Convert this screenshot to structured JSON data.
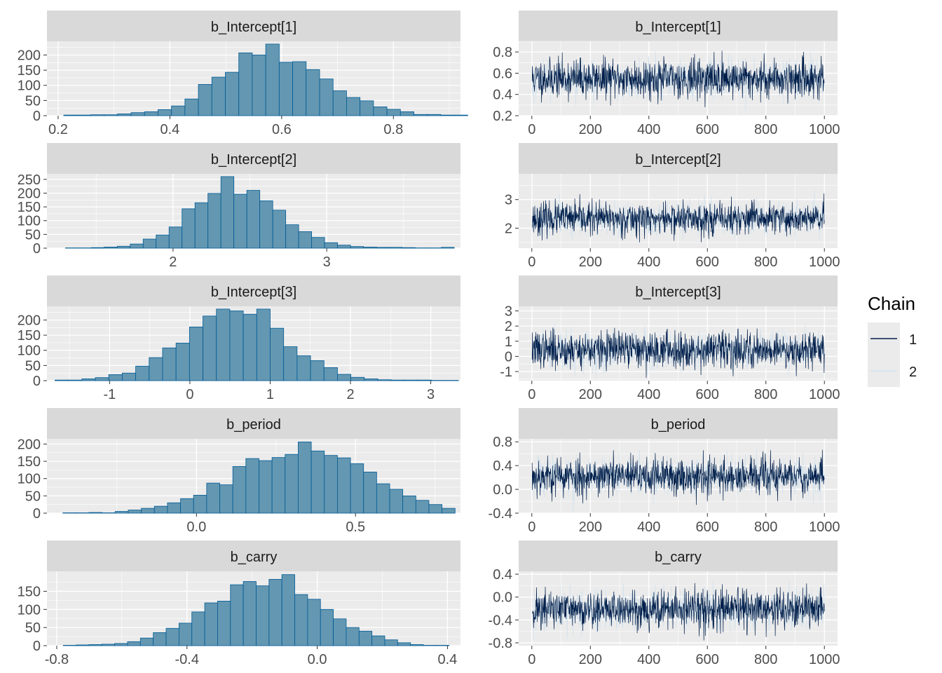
{
  "colors": {
    "panel_bg": "#ebebeb",
    "strip_bg": "#d9d9d9",
    "grid_major": "#ffffff",
    "hist_fill": "#6497b1",
    "hist_edge": "#005b96",
    "chain1": "#011f4b",
    "chain2": "#d1e1ec"
  },
  "legend": {
    "title": "Chain",
    "items": [
      {
        "label": "1",
        "color": "#011f4b"
      },
      {
        "label": "2",
        "color": "#d1e1ec"
      }
    ]
  },
  "chart_data": [
    {
      "type": "bar",
      "kind": "histogram",
      "title": "b_Intercept[1]",
      "bin_start": 0.21,
      "bin_width": 0.0241,
      "counts": [
        2,
        2,
        3,
        3,
        6,
        10,
        13,
        20,
        32,
        55,
        103,
        127,
        143,
        207,
        200,
        236,
        176,
        178,
        152,
        121,
        82,
        60,
        49,
        29,
        21,
        13,
        4,
        4,
        2,
        2
      ],
      "xlim": [
        0.18,
        0.92
      ],
      "ylim": [
        0,
        245
      ],
      "x_ticks": [
        {
          "v": 0.2,
          "label": "0.2"
        },
        {
          "v": 0.4,
          "label": "0.4"
        },
        {
          "v": 0.6,
          "label": "0.6"
        },
        {
          "v": 0.8,
          "label": "0.8"
        }
      ],
      "y_ticks": [
        {
          "v": 0,
          "label": "0"
        },
        {
          "v": 50,
          "label": "50"
        },
        {
          "v": 100,
          "label": "100"
        },
        {
          "v": 150,
          "label": "150"
        },
        {
          "v": 200,
          "label": "200"
        }
      ]
    },
    {
      "type": "line",
      "kind": "trace",
      "title": "b_Intercept[1]",
      "iterations": 1000,
      "center": 0.55,
      "spread": 0.09,
      "seed": 11,
      "xlim": [
        -45,
        1045
      ],
      "ylim": [
        0.2,
        0.9
      ],
      "x_ticks": [
        {
          "v": 0,
          "label": "0"
        },
        {
          "v": 200,
          "label": "200"
        },
        {
          "v": 400,
          "label": "400"
        },
        {
          "v": 600,
          "label": "600"
        },
        {
          "v": 800,
          "label": "800"
        },
        {
          "v": 1000,
          "label": "1000"
        }
      ],
      "y_ticks": [
        {
          "v": 0.2,
          "label": "0.2"
        },
        {
          "v": 0.4,
          "label": "0.4"
        },
        {
          "v": 0.6,
          "label": "0.6"
        },
        {
          "v": 0.8,
          "label": "0.8"
        }
      ],
      "series": [
        {
          "name": "1"
        },
        {
          "name": "2"
        }
      ]
    },
    {
      "type": "bar",
      "kind": "histogram",
      "title": "b_Intercept[2]",
      "bin_start": 1.3,
      "bin_width": 0.0843,
      "counts": [
        1,
        1,
        2,
        4,
        7,
        15,
        33,
        48,
        77,
        143,
        165,
        199,
        260,
        196,
        210,
        172,
        138,
        85,
        60,
        39,
        20,
        11,
        6,
        4,
        3,
        3,
        2,
        1,
        1,
        3
      ],
      "xlim": [
        1.18,
        3.87
      ],
      "ylim": [
        0,
        270
      ],
      "x_ticks": [
        {
          "v": 2,
          "label": "2"
        },
        {
          "v": 3,
          "label": "3"
        }
      ],
      "y_ticks": [
        {
          "v": 0,
          "label": "0"
        },
        {
          "v": 50,
          "label": "50"
        },
        {
          "v": 100,
          "label": "100"
        },
        {
          "v": 150,
          "label": "150"
        },
        {
          "v": 200,
          "label": "200"
        },
        {
          "v": 250,
          "label": "250"
        }
      ]
    },
    {
      "type": "line",
      "kind": "trace",
      "title": "b_Intercept[2]",
      "iterations": 1000,
      "center": 2.33,
      "spread": 0.28,
      "seed": 23,
      "xlim": [
        -45,
        1045
      ],
      "ylim": [
        1.3,
        3.9
      ],
      "x_ticks": [
        {
          "v": 0,
          "label": "0"
        },
        {
          "v": 200,
          "label": "200"
        },
        {
          "v": 400,
          "label": "400"
        },
        {
          "v": 600,
          "label": "600"
        },
        {
          "v": 800,
          "label": "800"
        },
        {
          "v": 1000,
          "label": "1000"
        }
      ],
      "y_ticks": [
        {
          "v": 2,
          "label": "2"
        },
        {
          "v": 3,
          "label": "3"
        }
      ],
      "series": [
        {
          "name": "1"
        },
        {
          "name": "2"
        }
      ]
    },
    {
      "type": "bar",
      "kind": "histogram",
      "title": "b_Intercept[3]",
      "bin_start": -1.68,
      "bin_width": 0.1675,
      "counts": [
        2,
        2,
        6,
        10,
        20,
        25,
        48,
        76,
        108,
        124,
        177,
        213,
        236,
        230,
        219,
        236,
        173,
        112,
        82,
        66,
        43,
        21,
        11,
        6,
        3,
        2,
        2,
        2,
        1,
        1
      ],
      "xlim": [
        -1.78,
        3.37
      ],
      "ylim": [
        0,
        245
      ],
      "x_ticks": [
        {
          "v": -1,
          "label": "-1"
        },
        {
          "v": 0,
          "label": "0"
        },
        {
          "v": 1,
          "label": "1"
        },
        {
          "v": 2,
          "label": "2"
        },
        {
          "v": 3,
          "label": "3"
        }
      ],
      "y_ticks": [
        {
          "v": 0,
          "label": "0"
        },
        {
          "v": 50,
          "label": "50"
        },
        {
          "v": 100,
          "label": "100"
        },
        {
          "v": 150,
          "label": "150"
        },
        {
          "v": 200,
          "label": "200"
        }
      ]
    },
    {
      "type": "line",
      "kind": "trace",
      "title": "b_Intercept[3]",
      "iterations": 1000,
      "center": 0.45,
      "spread": 0.6,
      "seed": 37,
      "xlim": [
        -45,
        1045
      ],
      "ylim": [
        -1.6,
        3.3
      ],
      "x_ticks": [
        {
          "v": 0,
          "label": "0"
        },
        {
          "v": 200,
          "label": "200"
        },
        {
          "v": 400,
          "label": "400"
        },
        {
          "v": 600,
          "label": "600"
        },
        {
          "v": 800,
          "label": "800"
        },
        {
          "v": 1000,
          "label": "1000"
        }
      ],
      "y_ticks": [
        {
          "v": -1,
          "label": "-1"
        },
        {
          "v": 0,
          "label": "0"
        },
        {
          "v": 1,
          "label": "1"
        },
        {
          "v": 2,
          "label": "2"
        },
        {
          "v": 3,
          "label": "3"
        }
      ],
      "series": [
        {
          "name": "1"
        },
        {
          "name": "2"
        }
      ]
    },
    {
      "type": "bar",
      "kind": "histogram",
      "title": "b_period",
      "bin_start": -0.42,
      "bin_width": 0.0411,
      "counts": [
        1,
        1,
        2,
        1,
        5,
        9,
        14,
        20,
        30,
        42,
        52,
        87,
        82,
        135,
        158,
        152,
        161,
        170,
        206,
        180,
        167,
        160,
        143,
        119,
        85,
        69,
        50,
        37,
        25,
        14
      ],
      "xlim": [
        -0.47,
        0.83
      ],
      "ylim": [
        0,
        215
      ],
      "x_ticks": [
        {
          "v": 0,
          "label": "0.0"
        },
        {
          "v": 0.5,
          "label": "0.5"
        }
      ],
      "y_ticks": [
        {
          "v": 0,
          "label": "0"
        },
        {
          "v": 50,
          "label": "50"
        },
        {
          "v": 100,
          "label": "100"
        },
        {
          "v": 150,
          "label": "150"
        },
        {
          "v": 200,
          "label": "200"
        }
      ]
    },
    {
      "type": "line",
      "kind": "trace",
      "title": "b_period",
      "iterations": 1000,
      "center": 0.22,
      "spread": 0.16,
      "seed": 53,
      "xlim": [
        -45,
        1045
      ],
      "ylim": [
        -0.4,
        0.85
      ],
      "x_ticks": [
        {
          "v": 0,
          "label": "0"
        },
        {
          "v": 200,
          "label": "200"
        },
        {
          "v": 400,
          "label": "400"
        },
        {
          "v": 600,
          "label": "600"
        },
        {
          "v": 800,
          "label": "800"
        },
        {
          "v": 1000,
          "label": "1000"
        }
      ],
      "y_ticks": [
        {
          "v": -0.4,
          "label": "-0.4"
        },
        {
          "v": 0,
          "label": "0.0"
        },
        {
          "v": 0.4,
          "label": "0.4"
        },
        {
          "v": 0.8,
          "label": "0.8"
        }
      ],
      "series": [
        {
          "name": "1"
        },
        {
          "name": "2"
        }
      ]
    },
    {
      "type": "bar",
      "kind": "histogram",
      "title": "b_carry",
      "bin_start": -0.78,
      "bin_width": 0.0395,
      "counts": [
        1,
        2,
        3,
        4,
        6,
        11,
        21,
        36,
        48,
        62,
        93,
        118,
        123,
        168,
        177,
        165,
        183,
        196,
        141,
        128,
        100,
        74,
        50,
        40,
        27,
        16,
        8,
        3,
        1,
        1
      ],
      "xlim": [
        -0.83,
        0.44
      ],
      "ylim": [
        0,
        205
      ],
      "x_ticks": [
        {
          "v": -0.8,
          "label": "-0.8"
        },
        {
          "v": -0.4,
          "label": "-0.4"
        },
        {
          "v": 0,
          "label": "0.0"
        },
        {
          "v": 0.4,
          "label": "0.4"
        }
      ],
      "y_ticks": [
        {
          "v": 0,
          "label": "0"
        },
        {
          "v": 50,
          "label": "50"
        },
        {
          "v": 100,
          "label": "100"
        },
        {
          "v": 150,
          "label": "150"
        }
      ]
    },
    {
      "type": "line",
      "kind": "trace",
      "title": "b_carry",
      "iterations": 1000,
      "center": -0.22,
      "spread": 0.17,
      "seed": 71,
      "xlim": [
        -45,
        1045
      ],
      "ylim": [
        -0.85,
        0.45
      ],
      "x_ticks": [
        {
          "v": 0,
          "label": "0"
        },
        {
          "v": 200,
          "label": "200"
        },
        {
          "v": 400,
          "label": "400"
        },
        {
          "v": 600,
          "label": "600"
        },
        {
          "v": 800,
          "label": "800"
        },
        {
          "v": 1000,
          "label": "1000"
        }
      ],
      "y_ticks": [
        {
          "v": -0.8,
          "label": "-0.8"
        },
        {
          "v": -0.4,
          "label": "-0.4"
        },
        {
          "v": 0,
          "label": "0.0"
        },
        {
          "v": 0.4,
          "label": "0.4"
        }
      ],
      "series": [
        {
          "name": "1"
        },
        {
          "name": "2"
        }
      ]
    }
  ]
}
